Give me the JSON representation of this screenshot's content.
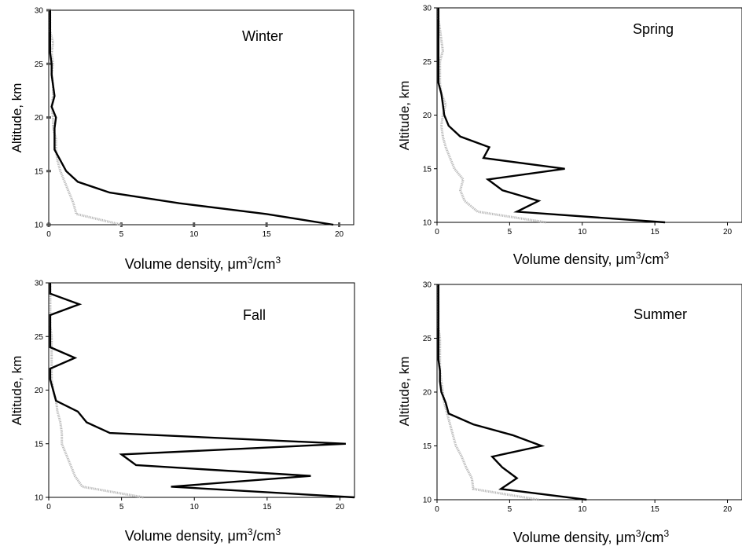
{
  "chart_data": [
    {
      "type": "line",
      "title": "Winter",
      "xlabel": "Volume density, μm³/cm³",
      "ylabel": "Altitude, km",
      "xlim": [
        0,
        21
      ],
      "ylim": [
        10,
        30
      ],
      "xticks": [
        "0",
        "5",
        "10",
        "15",
        "20"
      ],
      "yticks": [
        "10",
        "15",
        "20",
        "25",
        "30"
      ],
      "series": [
        {
          "color": "#000000",
          "style": "solid",
          "y": [
            10,
            11,
            12,
            13,
            14,
            15,
            16,
            17,
            18,
            19,
            20,
            21,
            22,
            23,
            24,
            25,
            26,
            27,
            28,
            29,
            30
          ],
          "x": [
            19.6,
            15,
            9,
            4.2,
            2,
            1.2,
            0.8,
            0.4,
            0.4,
            0.4,
            0.5,
            0.2,
            0.4,
            0.3,
            0.2,
            0.2,
            0.1,
            0.1,
            0.1,
            0.1,
            0.1
          ]
        },
        {
          "color": "#b8b8b8",
          "style": "dotted",
          "y": [
            10,
            11,
            12,
            13,
            14,
            15,
            16,
            17,
            18,
            19,
            20,
            21,
            22,
            23,
            24,
            25,
            26,
            27,
            28,
            29,
            30
          ],
          "x": [
            5,
            1.9,
            1.7,
            1.4,
            1.1,
            0.8,
            0.6,
            0.5,
            0.5,
            0.3,
            0.3,
            0.2,
            0.3,
            0.3,
            0.2,
            0.3,
            0.2,
            0.3,
            0.1,
            0.1,
            0.1
          ]
        }
      ]
    },
    {
      "type": "line",
      "title": "Spring",
      "xlabel": "Volume density, μm³/cm³",
      "ylabel": "Altitude, km",
      "xlim": [
        0,
        21
      ],
      "ylim": [
        10,
        30
      ],
      "xticks": [
        "0",
        "5",
        "10",
        "15",
        "20"
      ],
      "yticks": [
        "10",
        "15",
        "20",
        "25",
        "30"
      ],
      "series": [
        {
          "color": "#000000",
          "style": "solid",
          "y": [
            10,
            11,
            12,
            13,
            14,
            15,
            16,
            17,
            18,
            19,
            20,
            21,
            22,
            23,
            24,
            25,
            26,
            27,
            28,
            29,
            30
          ],
          "x": [
            15.7,
            5.5,
            7,
            4.5,
            3.5,
            8.8,
            3.2,
            3.6,
            1.6,
            0.8,
            0.5,
            0.4,
            0.3,
            0.1,
            0.1,
            0.1,
            0.1,
            0.1,
            0.1,
            0.1,
            0.1
          ]
        },
        {
          "color": "#b8b8b8",
          "style": "dotted",
          "y": [
            10,
            11,
            12,
            13,
            14,
            15,
            16,
            17,
            18,
            19,
            20,
            21,
            22,
            23,
            24,
            25,
            26,
            27,
            28,
            29,
            30
          ],
          "x": [
            7.5,
            2.8,
            1.9,
            1.6,
            1.8,
            1.2,
            0.9,
            0.6,
            0.4,
            0.3,
            0.4,
            0.6,
            0.3,
            0.2,
            0.2,
            0.2,
            0.4,
            0.3,
            0.2,
            0.1,
            0.1
          ]
        }
      ]
    },
    {
      "type": "line",
      "title": "Fall",
      "xlabel": "Volume density, μm³/cm³",
      "ylabel": "Altitude, km",
      "xlim": [
        0,
        21
      ],
      "ylim": [
        10,
        30
      ],
      "xticks": [
        "0",
        "5",
        "10",
        "15",
        "20"
      ],
      "yticks": [
        "10",
        "15",
        "20",
        "25",
        "30"
      ],
      "series": [
        {
          "color": "#000000",
          "style": "solid",
          "y": [
            10,
            11,
            12,
            13,
            14,
            15,
            16,
            17,
            18,
            19,
            20,
            21,
            22,
            23,
            24,
            25,
            26,
            27,
            28,
            29,
            30
          ],
          "x": [
            21,
            8.4,
            18,
            6,
            5,
            20.4,
            4.2,
            2.6,
            2,
            0.5,
            0.3,
            0.1,
            0.1,
            1.8,
            0.1,
            0.1,
            0.1,
            0.1,
            2.1,
            0.1,
            0.1
          ]
        },
        {
          "color": "#b8b8b8",
          "style": "dotted",
          "y": [
            10,
            11,
            12,
            13,
            14,
            15,
            16,
            17,
            18,
            19,
            20,
            21,
            22,
            23,
            24,
            25,
            26,
            27,
            28,
            29,
            30
          ],
          "x": [
            6.5,
            2.3,
            1.8,
            1.5,
            1.2,
            0.9,
            0.9,
            0.8,
            0.6,
            0.5,
            0.3,
            0.2,
            0.2,
            0.2,
            0.2,
            0.2,
            0.1,
            0.1,
            0.1,
            0.1,
            0.1
          ]
        }
      ]
    },
    {
      "type": "line",
      "title": "Summer",
      "xlabel": "Volume density, μm³/cm³",
      "ylabel": "Altitude, km",
      "xlim": [
        0,
        21
      ],
      "ylim": [
        10,
        30
      ],
      "xticks": [
        "0",
        "5",
        "10",
        "15",
        "20"
      ],
      "yticks": [
        "10",
        "15",
        "20",
        "25",
        "30"
      ],
      "series": [
        {
          "color": "#000000",
          "style": "solid",
          "y": [
            10,
            11,
            12,
            13,
            14,
            15,
            16,
            17,
            18,
            19,
            20,
            21,
            22,
            23,
            24,
            25,
            26,
            27,
            28,
            29,
            30
          ],
          "x": [
            10.3,
            4.4,
            5.5,
            4.5,
            3.8,
            7.2,
            5.2,
            2.5,
            0.8,
            0.6,
            0.3,
            0.2,
            0.2,
            0.1,
            0.1,
            0.1,
            0.1,
            0.1,
            0.1,
            0.1,
            0.1
          ]
        },
        {
          "color": "#b8b8b8",
          "style": "dotted",
          "y": [
            10,
            11,
            12,
            13,
            14,
            15,
            16,
            17,
            18,
            19,
            20,
            21,
            22,
            23,
            24,
            25,
            26,
            27,
            28,
            29,
            30
          ],
          "x": [
            7,
            2.5,
            2.4,
            2,
            1.7,
            1.3,
            1.1,
            0.9,
            0.7,
            0.5,
            0.4,
            0.3,
            0.2,
            0.2,
            0.2,
            0.2,
            0.1,
            0.1,
            0.1,
            0.1,
            0.1
          ]
        }
      ]
    }
  ]
}
